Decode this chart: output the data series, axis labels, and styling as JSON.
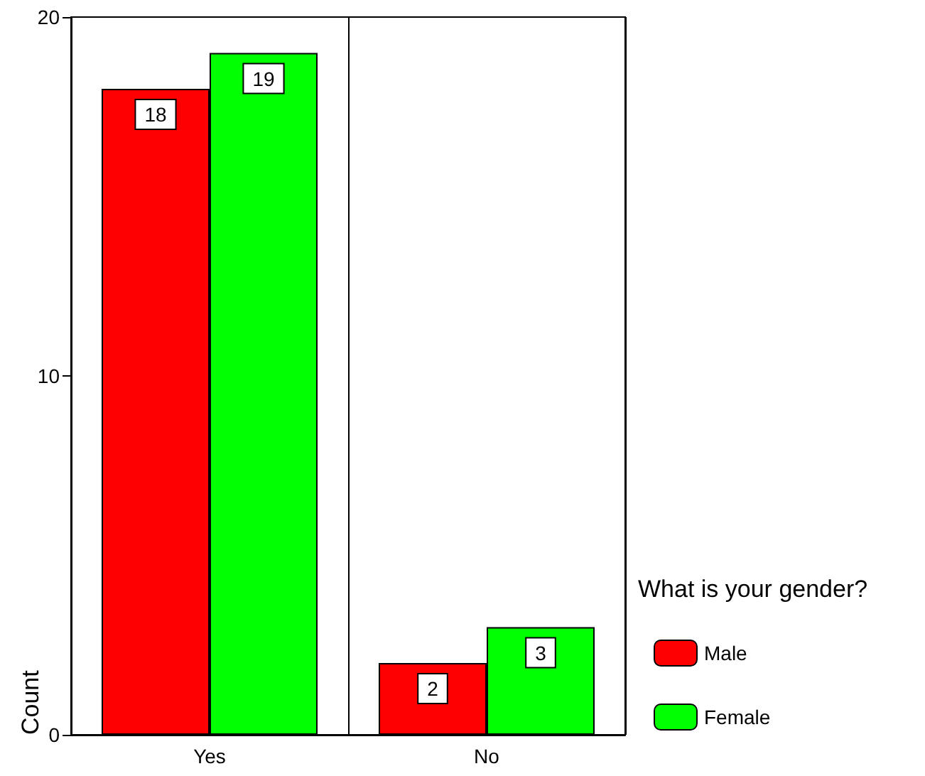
{
  "chart_data": {
    "type": "bar",
    "ylabel": "Count",
    "legend_title": "What is your gender?",
    "categories": [
      "Yes",
      "No"
    ],
    "series": [
      {
        "name": "Male",
        "color": "#ff0000",
        "values": [
          18,
          2
        ]
      },
      {
        "name": "Female",
        "color": "#00ff00",
        "values": [
          19,
          3
        ]
      }
    ],
    "ylim": [
      0,
      20
    ],
    "yticks": [
      0,
      10,
      20
    ],
    "data_labels": true,
    "grid": "x",
    "legend": "right"
  }
}
